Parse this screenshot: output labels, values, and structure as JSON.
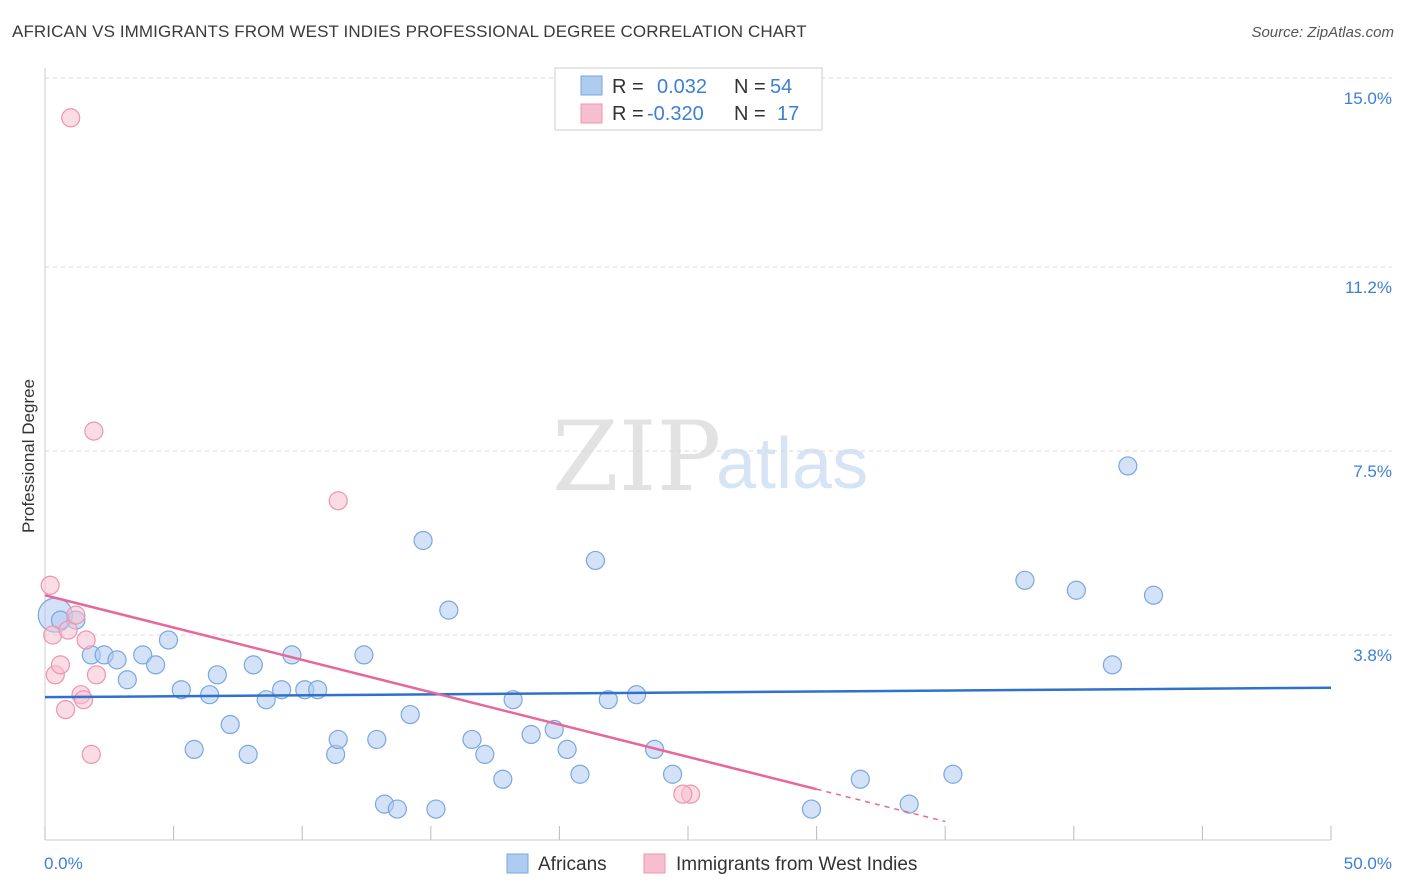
{
  "title": "AFRICAN VS IMMIGRANTS FROM WEST INDIES PROFESSIONAL DEGREE CORRELATION CHART",
  "source": "Source: ZipAtlas.com",
  "watermark": {
    "zip": "ZIP",
    "atlas": "atlas"
  },
  "legend": {
    "africans": {
      "r_label": "R =",
      "r_value": "0.032",
      "n_label": "N =",
      "n_value": "54"
    },
    "west_indies": {
      "r_label": "R =",
      "r_value": "-0.320",
      "n_label": "N =",
      "n_value": "17"
    }
  },
  "bottom_legend": {
    "africans": "Africans",
    "west_indies": "Immigrants from West Indies"
  },
  "colors": {
    "africans_fill": "#aecbf0",
    "africans_stroke": "#7aa7e0",
    "africans_line": "#2f72cc",
    "west_indies_fill": "#f6bfd0",
    "west_indies_stroke": "#ec94b1",
    "west_indies_line": "#e8679a",
    "grid": "#d8d8d8",
    "tick_text": "#3d7fd4"
  },
  "chart_data": {
    "type": "scatter",
    "title": "AFRICAN VS IMMIGRANTS FROM WEST INDIES PROFESSIONAL DEGREE CORRELATION CHART",
    "xlabel": "",
    "ylabel": "Professional Degree",
    "xlim": [
      0,
      50
    ],
    "ylim": [
      0,
      15
    ],
    "x_tick_labels": [
      "0.0%",
      "50.0%"
    ],
    "y_ticks": [
      3.8,
      7.5,
      11.2,
      15.0
    ],
    "y_tick_labels": [
      "3.8%",
      "7.5%",
      "11.2%",
      "15.0%"
    ],
    "grid": "horizontal dashed",
    "legend_position": "top-center",
    "series": [
      {
        "name": "Africans",
        "points": [
          [
            0.4,
            4.2
          ],
          [
            1.2,
            4.1
          ],
          [
            1.8,
            3.4
          ],
          [
            2.3,
            3.4
          ],
          [
            2.8,
            3.3
          ],
          [
            3.2,
            2.9
          ],
          [
            3.8,
            3.4
          ],
          [
            4.3,
            3.2
          ],
          [
            4.8,
            3.7
          ],
          [
            5.3,
            2.7
          ],
          [
            5.8,
            1.5
          ],
          [
            6.4,
            2.6
          ],
          [
            6.7,
            3.0
          ],
          [
            7.2,
            2.0
          ],
          [
            7.9,
            1.4
          ],
          [
            8.1,
            3.2
          ],
          [
            8.6,
            2.5
          ],
          [
            9.2,
            2.7
          ],
          [
            9.6,
            3.4
          ],
          [
            10.1,
            2.7
          ],
          [
            10.6,
            2.7
          ],
          [
            11.3,
            1.4
          ],
          [
            11.4,
            1.7
          ],
          [
            12.4,
            3.4
          ],
          [
            12.9,
            1.7
          ],
          [
            13.2,
            0.4
          ],
          [
            13.7,
            0.3
          ],
          [
            14.2,
            2.2
          ],
          [
            14.7,
            5.7
          ],
          [
            15.2,
            0.3
          ],
          [
            15.7,
            4.3
          ],
          [
            16.6,
            1.7
          ],
          [
            17.1,
            1.4
          ],
          [
            17.8,
            0.9
          ],
          [
            18.2,
            2.5
          ],
          [
            18.9,
            1.8
          ],
          [
            19.8,
            1.9
          ],
          [
            20.3,
            1.5
          ],
          [
            20.8,
            1.0
          ],
          [
            21.4,
            5.3
          ],
          [
            21.9,
            2.5
          ],
          [
            23.0,
            2.6
          ],
          [
            23.7,
            1.5
          ],
          [
            24.4,
            1.0
          ],
          [
            29.8,
            0.3
          ],
          [
            31.7,
            0.9
          ],
          [
            33.6,
            0.4
          ],
          [
            35.3,
            1.0
          ],
          [
            38.1,
            4.9
          ],
          [
            40.1,
            4.7
          ],
          [
            41.5,
            3.2
          ],
          [
            42.1,
            7.2
          ],
          [
            43.1,
            4.6
          ],
          [
            0.6,
            4.1
          ]
        ],
        "trend": {
          "x": [
            0,
            50
          ],
          "y": [
            2.55,
            2.74
          ]
        }
      },
      {
        "name": "Immigrants from West Indies",
        "points": [
          [
            0.2,
            4.8
          ],
          [
            0.3,
            3.8
          ],
          [
            0.4,
            3.0
          ],
          [
            0.6,
            3.2
          ],
          [
            0.8,
            2.3
          ],
          [
            0.9,
            3.9
          ],
          [
            1.0,
            14.2
          ],
          [
            1.2,
            4.2
          ],
          [
            1.4,
            2.6
          ],
          [
            1.5,
            2.5
          ],
          [
            1.6,
            3.7
          ],
          [
            1.8,
            1.4
          ],
          [
            1.9,
            7.9
          ],
          [
            2.0,
            3.0
          ],
          [
            11.4,
            6.5
          ],
          [
            25.1,
            0.6
          ],
          [
            24.8,
            0.6
          ]
        ],
        "trend": {
          "x": [
            0,
            30
          ],
          "y": [
            4.6,
            0.7
          ]
        },
        "trend_dashed": {
          "x": [
            30,
            35
          ],
          "y": [
            0.7,
            0.05
          ]
        }
      }
    ]
  }
}
